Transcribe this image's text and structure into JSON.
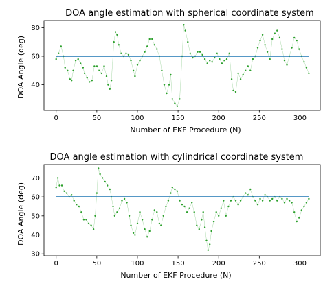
{
  "chart_data": [
    {
      "type": "scatter",
      "title": "DOA angle estimation with spherical coordinate system",
      "xlabel": "Number of EKF Procedure (N)",
      "ylabel": "DOA Angle (deg)",
      "xlim": [
        -15,
        325
      ],
      "ylim": [
        22,
        85
      ],
      "xticks": [
        0,
        50,
        100,
        150,
        200,
        250,
        300
      ],
      "yticks": [
        40,
        60,
        80
      ],
      "grid": false,
      "reference_line": {
        "y": 60,
        "color": "#1f77b4"
      },
      "series": [
        {
          "color": "#2ca02c",
          "points": [
            [
              0,
              58
            ],
            [
              3,
              62
            ],
            [
              6,
              67
            ],
            [
              9,
              60
            ],
            [
              11,
              52
            ],
            [
              14,
              50
            ],
            [
              17,
              44
            ],
            [
              19,
              43
            ],
            [
              21,
              50
            ],
            [
              24,
              57
            ],
            [
              27,
              58
            ],
            [
              30,
              55
            ],
            [
              33,
              52
            ],
            [
              35,
              48
            ],
            [
              38,
              45
            ],
            [
              41,
              42
            ],
            [
              44,
              43
            ],
            [
              47,
              53
            ],
            [
              50,
              53
            ],
            [
              53,
              50
            ],
            [
              56,
              48
            ],
            [
              59,
              53
            ],
            [
              62,
              46
            ],
            [
              64,
              40
            ],
            [
              66,
              37
            ],
            [
              68,
              43
            ],
            [
              71,
              70
            ],
            [
              73,
              77
            ],
            [
              75,
              75
            ],
            [
              77,
              68
            ],
            [
              80,
              62
            ],
            [
              83,
              60
            ],
            [
              86,
              62
            ],
            [
              89,
              61
            ],
            [
              92,
              57
            ],
            [
              95,
              50
            ],
            [
              97,
              46
            ],
            [
              100,
              54
            ],
            [
              103,
              57
            ],
            [
              106,
              60
            ],
            [
              109,
              63
            ],
            [
              112,
              67
            ],
            [
              115,
              72
            ],
            [
              118,
              72
            ],
            [
              121,
              68
            ],
            [
              124,
              65
            ],
            [
              127,
              60
            ],
            [
              130,
              50
            ],
            [
              133,
              40
            ],
            [
              136,
              34
            ],
            [
              139,
              40
            ],
            [
              141,
              47
            ],
            [
              143,
              30
            ],
            [
              146,
              27
            ],
            [
              149,
              25
            ],
            [
              152,
              30
            ],
            [
              155,
              60
            ],
            [
              157,
              82
            ],
            [
              159,
              78
            ],
            [
              162,
              70
            ],
            [
              165,
              62
            ],
            [
              168,
              59
            ],
            [
              171,
              60
            ],
            [
              174,
              63
            ],
            [
              177,
              63
            ],
            [
              180,
              61
            ],
            [
              183,
              58
            ],
            [
              186,
              55
            ],
            [
              189,
              57
            ],
            [
              192,
              56
            ],
            [
              195,
              59
            ],
            [
              198,
              62
            ],
            [
              201,
              58
            ],
            [
              204,
              55
            ],
            [
              207,
              57
            ],
            [
              210,
              58
            ],
            [
              213,
              62
            ],
            [
              216,
              44
            ],
            [
              218,
              36
            ],
            [
              221,
              35
            ],
            [
              224,
              48
            ],
            [
              227,
              44
            ],
            [
              230,
              47
            ],
            [
              233,
              50
            ],
            [
              236,
              53
            ],
            [
              239,
              50
            ],
            [
              242,
              58
            ],
            [
              245,
              60
            ],
            [
              248,
              66
            ],
            [
              251,
              71
            ],
            [
              254,
              75
            ],
            [
              257,
              68
            ],
            [
              260,
              63
            ],
            [
              263,
              58
            ],
            [
              266,
              72
            ],
            [
              269,
              76
            ],
            [
              272,
              78
            ],
            [
              275,
              73
            ],
            [
              278,
              65
            ],
            [
              281,
              57
            ],
            [
              284,
              54
            ],
            [
              287,
              60
            ],
            [
              290,
              66
            ],
            [
              293,
              73
            ],
            [
              296,
              71
            ],
            [
              299,
              65
            ],
            [
              302,
              60
            ],
            [
              305,
              56
            ],
            [
              308,
              52
            ],
            [
              311,
              48
            ]
          ]
        }
      ]
    },
    {
      "type": "scatter",
      "title": "DOA angle estimation with cylindrical coordinate system",
      "xlabel": "Number of EKF Procedure (N)",
      "ylabel": "DOA Angle (deg)",
      "xlim": [
        -15,
        325
      ],
      "ylim": [
        29,
        77
      ],
      "xticks": [
        0,
        50,
        100,
        150,
        200,
        250,
        300
      ],
      "yticks": [
        30,
        40,
        50,
        60,
        70
      ],
      "grid": false,
      "reference_line": {
        "y": 60,
        "color": "#1f77b4"
      },
      "series": [
        {
          "color": "#2ca02c",
          "points": [
            [
              0,
              65
            ],
            [
              2,
              70
            ],
            [
              4,
              66
            ],
            [
              7,
              66
            ],
            [
              10,
              63
            ],
            [
              13,
              62
            ],
            [
              16,
              60
            ],
            [
              19,
              61
            ],
            [
              22,
              58
            ],
            [
              25,
              56
            ],
            [
              28,
              55
            ],
            [
              31,
              52
            ],
            [
              34,
              48
            ],
            [
              37,
              48
            ],
            [
              40,
              46
            ],
            [
              43,
              45
            ],
            [
              46,
              43
            ],
            [
              48,
              50
            ],
            [
              50,
              62
            ],
            [
              52,
              75
            ],
            [
              54,
              72
            ],
            [
              57,
              70
            ],
            [
              60,
              68
            ],
            [
              63,
              66
            ],
            [
              66,
              64
            ],
            [
              68,
              60
            ],
            [
              70,
              55
            ],
            [
              72,
              50
            ],
            [
              75,
              52
            ],
            [
              78,
              54
            ],
            [
              81,
              58
            ],
            [
              84,
              59
            ],
            [
              87,
              57
            ],
            [
              90,
              50
            ],
            [
              92,
              45
            ],
            [
              95,
              41
            ],
            [
              97,
              40
            ],
            [
              100,
              46
            ],
            [
              103,
              52
            ],
            [
              106,
              48
            ],
            [
              109,
              43
            ],
            [
              112,
              39
            ],
            [
              115,
              42
            ],
            [
              118,
              48
            ],
            [
              121,
              53
            ],
            [
              124,
              52
            ],
            [
              127,
              46
            ],
            [
              129,
              45
            ],
            [
              132,
              50
            ],
            [
              135,
              55
            ],
            [
              138,
              58
            ],
            [
              141,
              62
            ],
            [
              143,
              65
            ],
            [
              146,
              64
            ],
            [
              149,
              63
            ],
            [
              152,
              58
            ],
            [
              155,
              56
            ],
            [
              158,
              55
            ],
            [
              161,
              52
            ],
            [
              164,
              54
            ],
            [
              167,
              57
            ],
            [
              170,
              52
            ],
            [
              173,
              45
            ],
            [
              176,
              43
            ],
            [
              179,
              48
            ],
            [
              181,
              52
            ],
            [
              183,
              44
            ],
            [
              185,
              37
            ],
            [
              187,
              32
            ],
            [
              189,
              35
            ],
            [
              191,
              42
            ],
            [
              194,
              47
            ],
            [
              197,
              52
            ],
            [
              200,
              50
            ],
            [
              203,
              54
            ],
            [
              206,
              58
            ],
            [
              209,
              50
            ],
            [
              212,
              55
            ],
            [
              215,
              58
            ],
            [
              218,
              60
            ],
            [
              221,
              58
            ],
            [
              224,
              56
            ],
            [
              227,
              58
            ],
            [
              230,
              60
            ],
            [
              233,
              62
            ],
            [
              236,
              61
            ],
            [
              239,
              64
            ],
            [
              242,
              60
            ],
            [
              245,
              58
            ],
            [
              248,
              56
            ],
            [
              251,
              59
            ],
            [
              254,
              58
            ],
            [
              257,
              61
            ],
            [
              260,
              60
            ],
            [
              263,
              58
            ],
            [
              266,
              59
            ],
            [
              269,
              60
            ],
            [
              272,
              58
            ],
            [
              275,
              60
            ],
            [
              278,
              59
            ],
            [
              281,
              57
            ],
            [
              284,
              59
            ],
            [
              287,
              58
            ],
            [
              290,
              57
            ],
            [
              293,
              52
            ],
            [
              296,
              47
            ],
            [
              299,
              49
            ],
            [
              302,
              53
            ],
            [
              305,
              55
            ],
            [
              308,
              57
            ],
            [
              311,
              59
            ]
          ]
        }
      ]
    }
  ]
}
